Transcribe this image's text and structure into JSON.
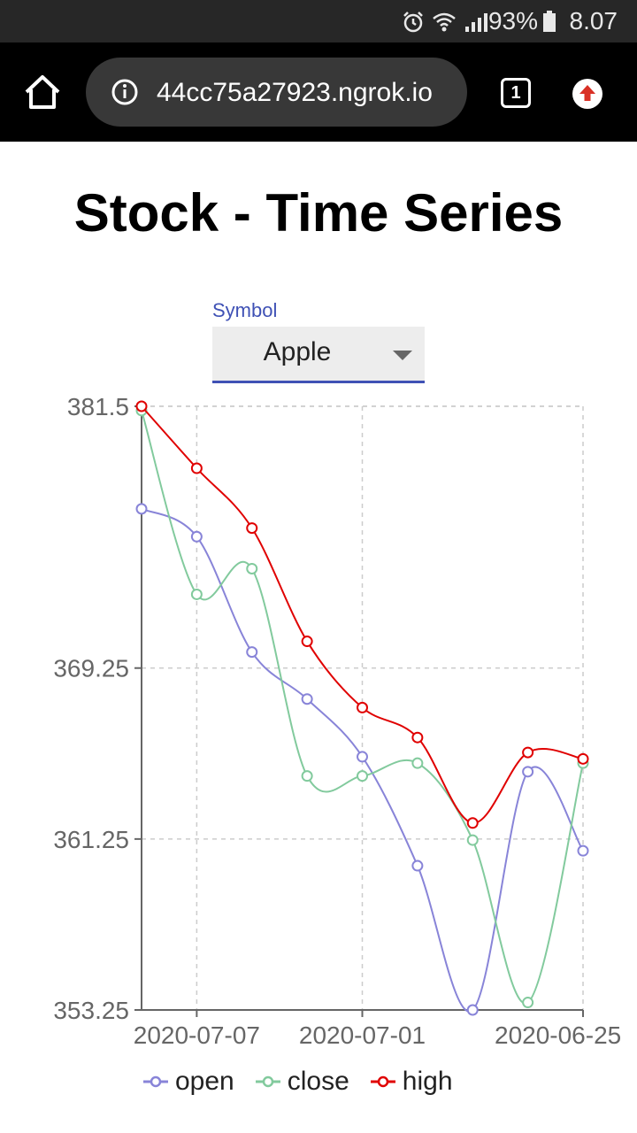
{
  "status_bar": {
    "battery": "93%",
    "time": "8.07",
    "icons": [
      "alarm-icon",
      "wifi-icon",
      "signal-icon",
      "battery-icon"
    ]
  },
  "browser": {
    "url": "44cc75a27923.ngrok.io",
    "tab_count": "1",
    "icons": [
      "home-icon",
      "info-icon",
      "upload-icon"
    ]
  },
  "page": {
    "title": "Stock - Time Series"
  },
  "symbol_select": {
    "label": "Symbol",
    "value": "Apple"
  },
  "colors": {
    "open": "#8884d8",
    "close": "#82ca9d",
    "high": "#e00000",
    "accent": "#3f51b5"
  },
  "chart_data": {
    "type": "line",
    "title": "",
    "xlabel": "",
    "ylabel": "",
    "x_tick_labels": [
      "2020-07-07",
      "2020-07-01",
      "2020-06-25"
    ],
    "y_ticks": [
      353.25,
      361.25,
      369.25,
      381.5
    ],
    "y_tick_labels": [
      "353.25",
      "361.25",
      "369.25",
      "381.5"
    ],
    "ylim": [
      353.25,
      381.5
    ],
    "grid": true,
    "legend_position": "bottom",
    "series": [
      {
        "name": "open",
        "color": "#8884d8",
        "values": [
          376.7,
          375.4,
          370.0,
          367.8,
          365.1,
          360.0,
          353.25,
          364.4,
          360.7
        ]
      },
      {
        "name": "close",
        "color": "#82ca9d",
        "values": [
          381.3,
          372.7,
          373.9,
          364.2,
          364.2,
          364.8,
          361.2,
          353.6,
          364.8
        ]
      },
      {
        "name": "high",
        "color": "#e00000",
        "values": [
          381.5,
          378.6,
          375.8,
          370.5,
          367.4,
          366.0,
          362.0,
          365.3,
          365.0
        ]
      }
    ]
  }
}
